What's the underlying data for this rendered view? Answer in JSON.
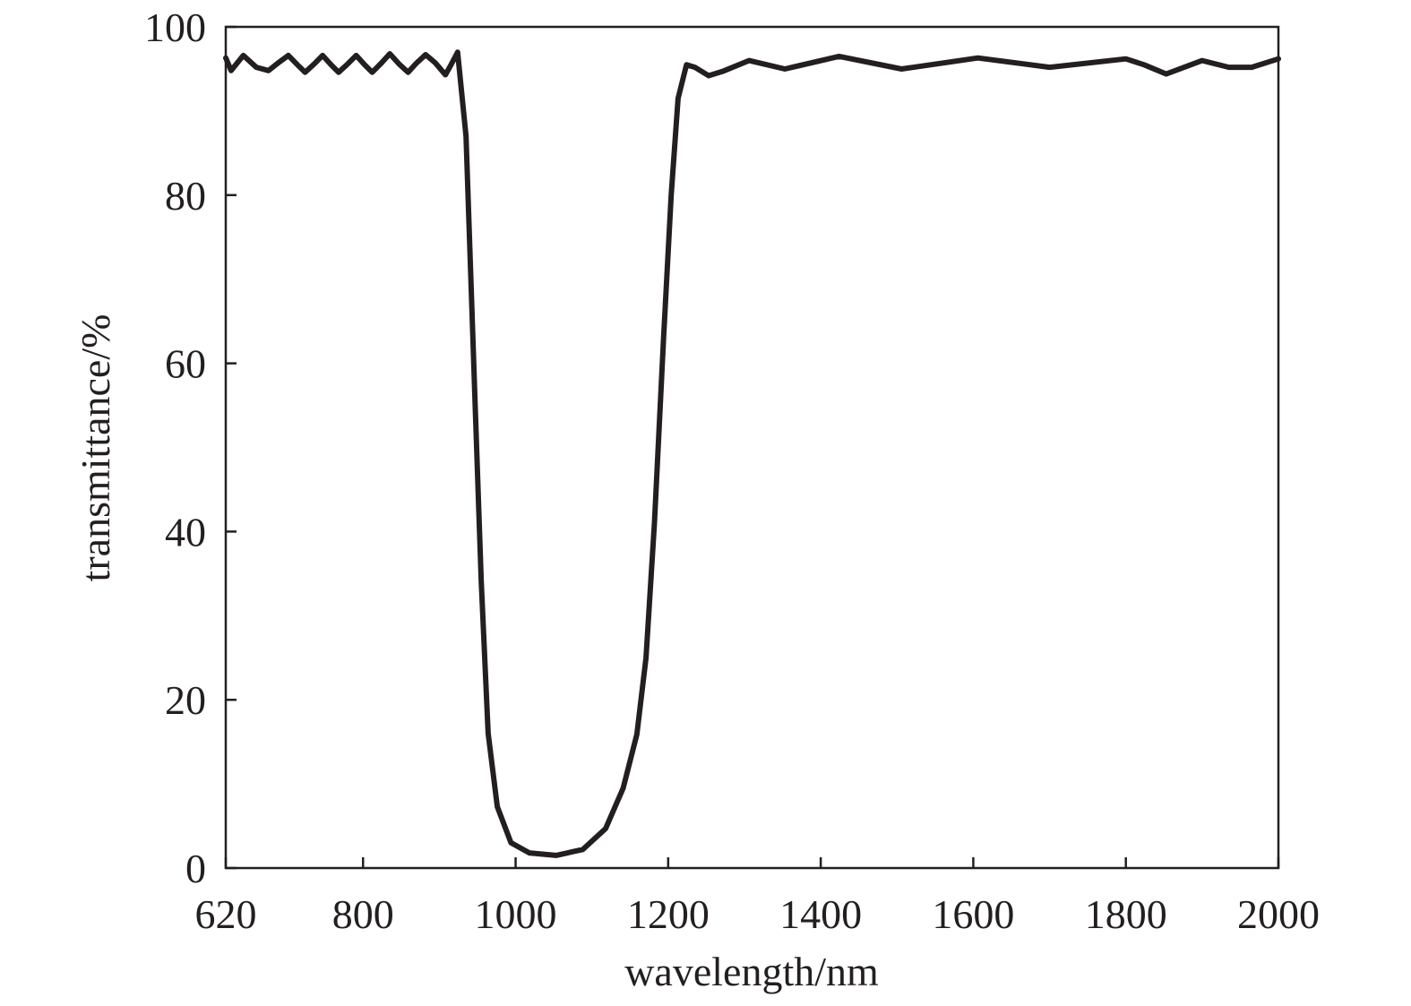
{
  "chart_data": {
    "type": "line",
    "x_label": "wavelength/nm",
    "y_label": "transmittance/%",
    "xlim": [
      620,
      2000
    ],
    "ylim": [
      0,
      100
    ],
    "xticks": [
      620,
      800,
      1000,
      1200,
      1400,
      1600,
      1800,
      2000
    ],
    "yticks": [
      0,
      20,
      40,
      60,
      80,
      100
    ],
    "series": [
      {
        "color": "#231f20",
        "x": [
          620,
          627,
          643,
          660,
          676,
          690,
          702,
          714,
          724,
          736,
          747,
          758,
          768,
          780,
          791,
          802,
          812,
          824,
          835,
          847,
          859,
          870,
          882,
          895,
          908,
          916,
          924,
          935,
          941,
          947,
          955,
          964,
          976,
          994,
          1018,
          1053,
          1088,
          1118,
          1141,
          1159,
          1171,
          1182,
          1194,
          1204,
          1213,
          1224,
          1235,
          1253,
          1271,
          1306,
          1353,
          1424,
          1506,
          1606,
          1700,
          1800,
          1824,
          1853,
          1900,
          1935,
          1965,
          2000
        ],
        "values": [
          96.3,
          94.8,
          96.6,
          95.2,
          94.8,
          95.8,
          96.6,
          95.5,
          94.6,
          95.6,
          96.6,
          95.5,
          94.6,
          95.6,
          96.6,
          95.5,
          94.6,
          95.7,
          96.8,
          95.6,
          94.6,
          95.7,
          96.7,
          95.7,
          94.3,
          95.6,
          97,
          87,
          71,
          55,
          34,
          16,
          7.3,
          3,
          1.8,
          1.5,
          2.2,
          4.7,
          9.5,
          15.9,
          25,
          41,
          63,
          80,
          91.5,
          95.5,
          95.2,
          94.2,
          94.7,
          96,
          95,
          96.5,
          95,
          96.3,
          95.2,
          96.2,
          95.5,
          94.4,
          96,
          95.2,
          95.2,
          96.2
        ]
      }
    ]
  }
}
